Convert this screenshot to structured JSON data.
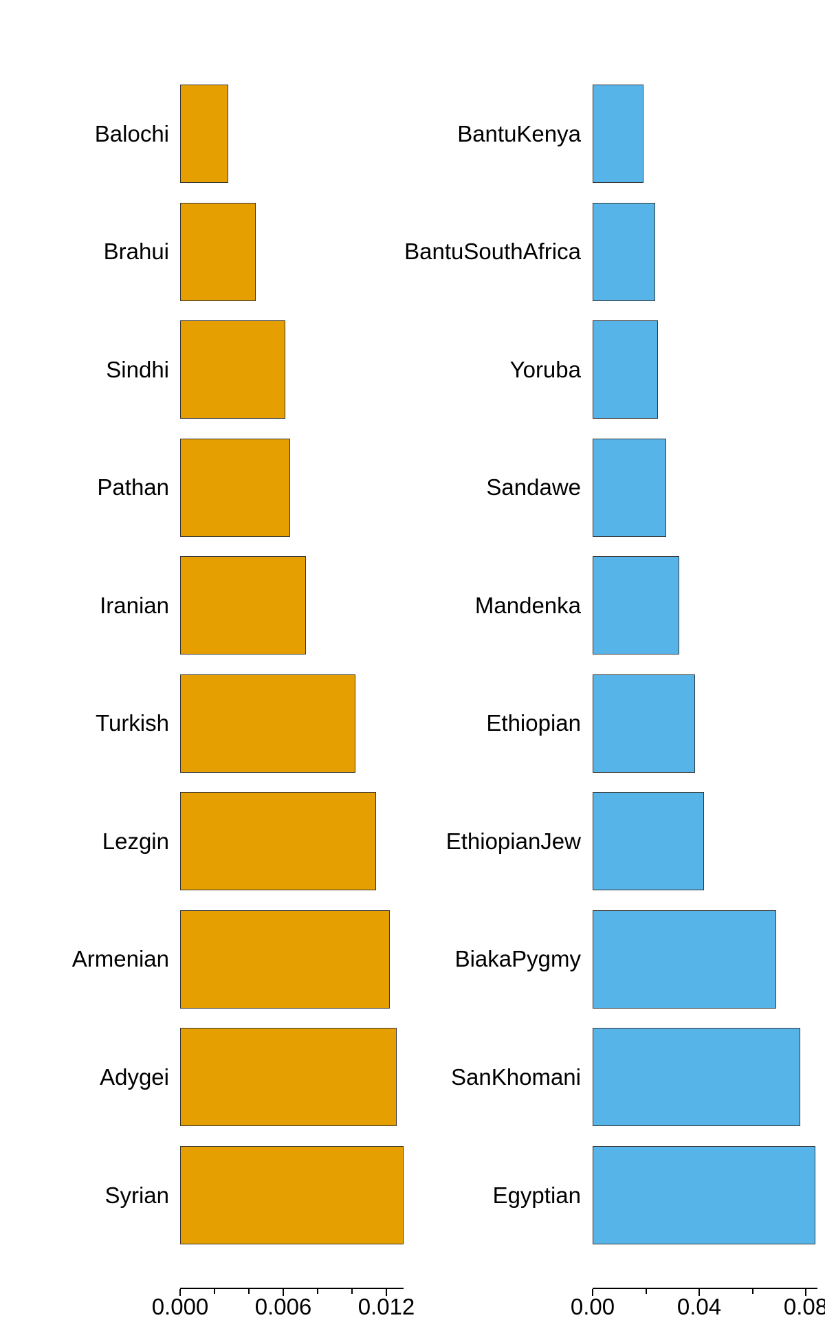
{
  "figure": {
    "background": "#ffffff",
    "text_color": "#000000"
  },
  "chart_data": [
    {
      "type": "bar",
      "orientation": "horizontal",
      "panel": "left",
      "bar_color": "#E69F00",
      "bar_border_color": "#333333",
      "categories": [
        "Balochi",
        "Brahui",
        "Sindhi",
        "Pathan",
        "Iranian",
        "Turkish",
        "Lezgin",
        "Armenian",
        "Adygei",
        "Syrian"
      ],
      "values": [
        0.0028,
        0.0044,
        0.0061,
        0.0064,
        0.0073,
        0.0102,
        0.0114,
        0.0122,
        0.0126,
        0.013
      ],
      "xlim": [
        0,
        0.013
      ],
      "grid": false,
      "legend": null,
      "x_ticks": [
        {
          "value": 0.0,
          "label": "0.000",
          "major": true
        },
        {
          "value": 0.002,
          "label": "",
          "major": false
        },
        {
          "value": 0.004,
          "label": "",
          "major": false
        },
        {
          "value": 0.006,
          "label": "0.006",
          "major": true
        },
        {
          "value": 0.008,
          "label": "",
          "major": false
        },
        {
          "value": 0.01,
          "label": "",
          "major": false
        },
        {
          "value": 0.012,
          "label": "0.012",
          "major": true
        }
      ]
    },
    {
      "type": "bar",
      "orientation": "horizontal",
      "panel": "right",
      "bar_color": "#56B4E9",
      "bar_border_color": "#333333",
      "categories": [
        "BantuKenya",
        "BantuSouthAfrica",
        "Yoruba",
        "Sandawe",
        "Mandenka",
        "Ethiopian",
        "EthiopianJew",
        "BiakaPygmy",
        "SanKhomani",
        "Egyptian"
      ],
      "values": [
        0.019,
        0.0235,
        0.0245,
        0.0276,
        0.0325,
        0.0385,
        0.0418,
        0.069,
        0.078,
        0.0835
      ],
      "xlim": [
        0,
        0.0845
      ],
      "grid": false,
      "legend": null,
      "x_ticks": [
        {
          "value": 0.0,
          "label": "0.00",
          "major": true
        },
        {
          "value": 0.02,
          "label": "",
          "major": false
        },
        {
          "value": 0.04,
          "label": "0.04",
          "major": true
        },
        {
          "value": 0.06,
          "label": "",
          "major": false
        },
        {
          "value": 0.08,
          "label": "0.08",
          "major": true
        }
      ]
    }
  ]
}
